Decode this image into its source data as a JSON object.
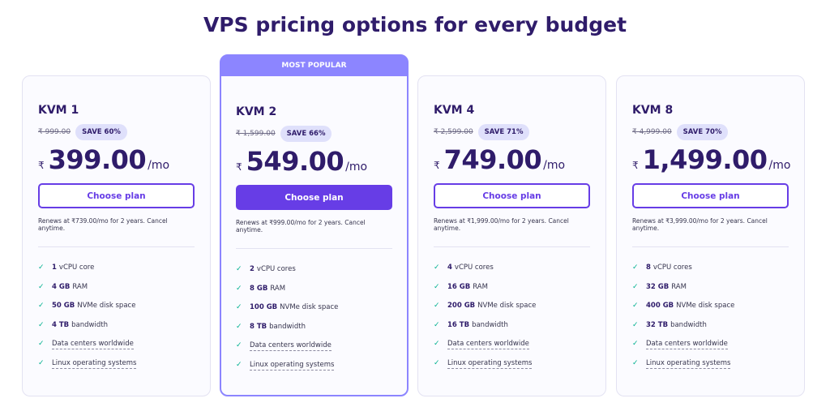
{
  "title": "VPS pricing options for every budget",
  "badge": "MOST POPULAR",
  "plans": [
    {
      "name": "KVM 1",
      "old": "₹ 999.00",
      "save": "SAVE 60%",
      "currency": "₹",
      "price": "399.00",
      "per": "/mo",
      "button": "Choose plan",
      "renew": "Renews at ₹739.00/mo for 2 years. Cancel anytime.",
      "features": [
        [
          "1",
          "vCPU core"
        ],
        [
          "4 GB",
          "RAM"
        ],
        [
          "50 GB",
          "NVMe disk space"
        ],
        [
          "4 TB",
          "bandwidth"
        ],
        [
          "",
          "Data centers worldwide"
        ],
        [
          "",
          "Linux operating systems"
        ]
      ]
    },
    {
      "name": "KVM 2",
      "old": "₹ 1,599.00",
      "save": "SAVE 66%",
      "currency": "₹",
      "price": "549.00",
      "per": "/mo",
      "button": "Choose plan",
      "renew": "Renews at ₹999.00/mo for 2 years. Cancel anytime.",
      "features": [
        [
          "2",
          "vCPU cores"
        ],
        [
          "8 GB",
          "RAM"
        ],
        [
          "100 GB",
          "NVMe disk space"
        ],
        [
          "8 TB",
          "bandwidth"
        ],
        [
          "",
          "Data centers worldwide"
        ],
        [
          "",
          "Linux operating systems"
        ]
      ]
    },
    {
      "name": "KVM 4",
      "old": "₹ 2,599.00",
      "save": "SAVE 71%",
      "currency": "₹",
      "price": "749.00",
      "per": "/mo",
      "button": "Choose plan",
      "renew": "Renews at ₹1,999.00/mo for 2 years. Cancel anytime.",
      "features": [
        [
          "4",
          "vCPU cores"
        ],
        [
          "16 GB",
          "RAM"
        ],
        [
          "200 GB",
          "NVMe disk space"
        ],
        [
          "16 TB",
          "bandwidth"
        ],
        [
          "",
          "Data centers worldwide"
        ],
        [
          "",
          "Linux operating systems"
        ]
      ]
    },
    {
      "name": "KVM 8",
      "old": "₹ 4,999.00",
      "save": "SAVE 70%",
      "currency": "₹",
      "price": "1,499.00",
      "per": "/mo",
      "button": "Choose plan",
      "renew": "Renews at ₹3,999.00/mo for 2 years. Cancel anytime.",
      "features": [
        [
          "8",
          "vCPU cores"
        ],
        [
          "32 GB",
          "RAM"
        ],
        [
          "400 GB",
          "NVMe disk space"
        ],
        [
          "32 TB",
          "bandwidth"
        ],
        [
          "",
          "Data centers worldwide"
        ],
        [
          "",
          "Linux operating systems"
        ]
      ]
    }
  ],
  "colors": {
    "accent": "#673de6",
    "popular": "#8c85ff",
    "check": "#00b090",
    "text": "#2f1c6a"
  },
  "icons": {
    "feature": "check-icon"
  }
}
